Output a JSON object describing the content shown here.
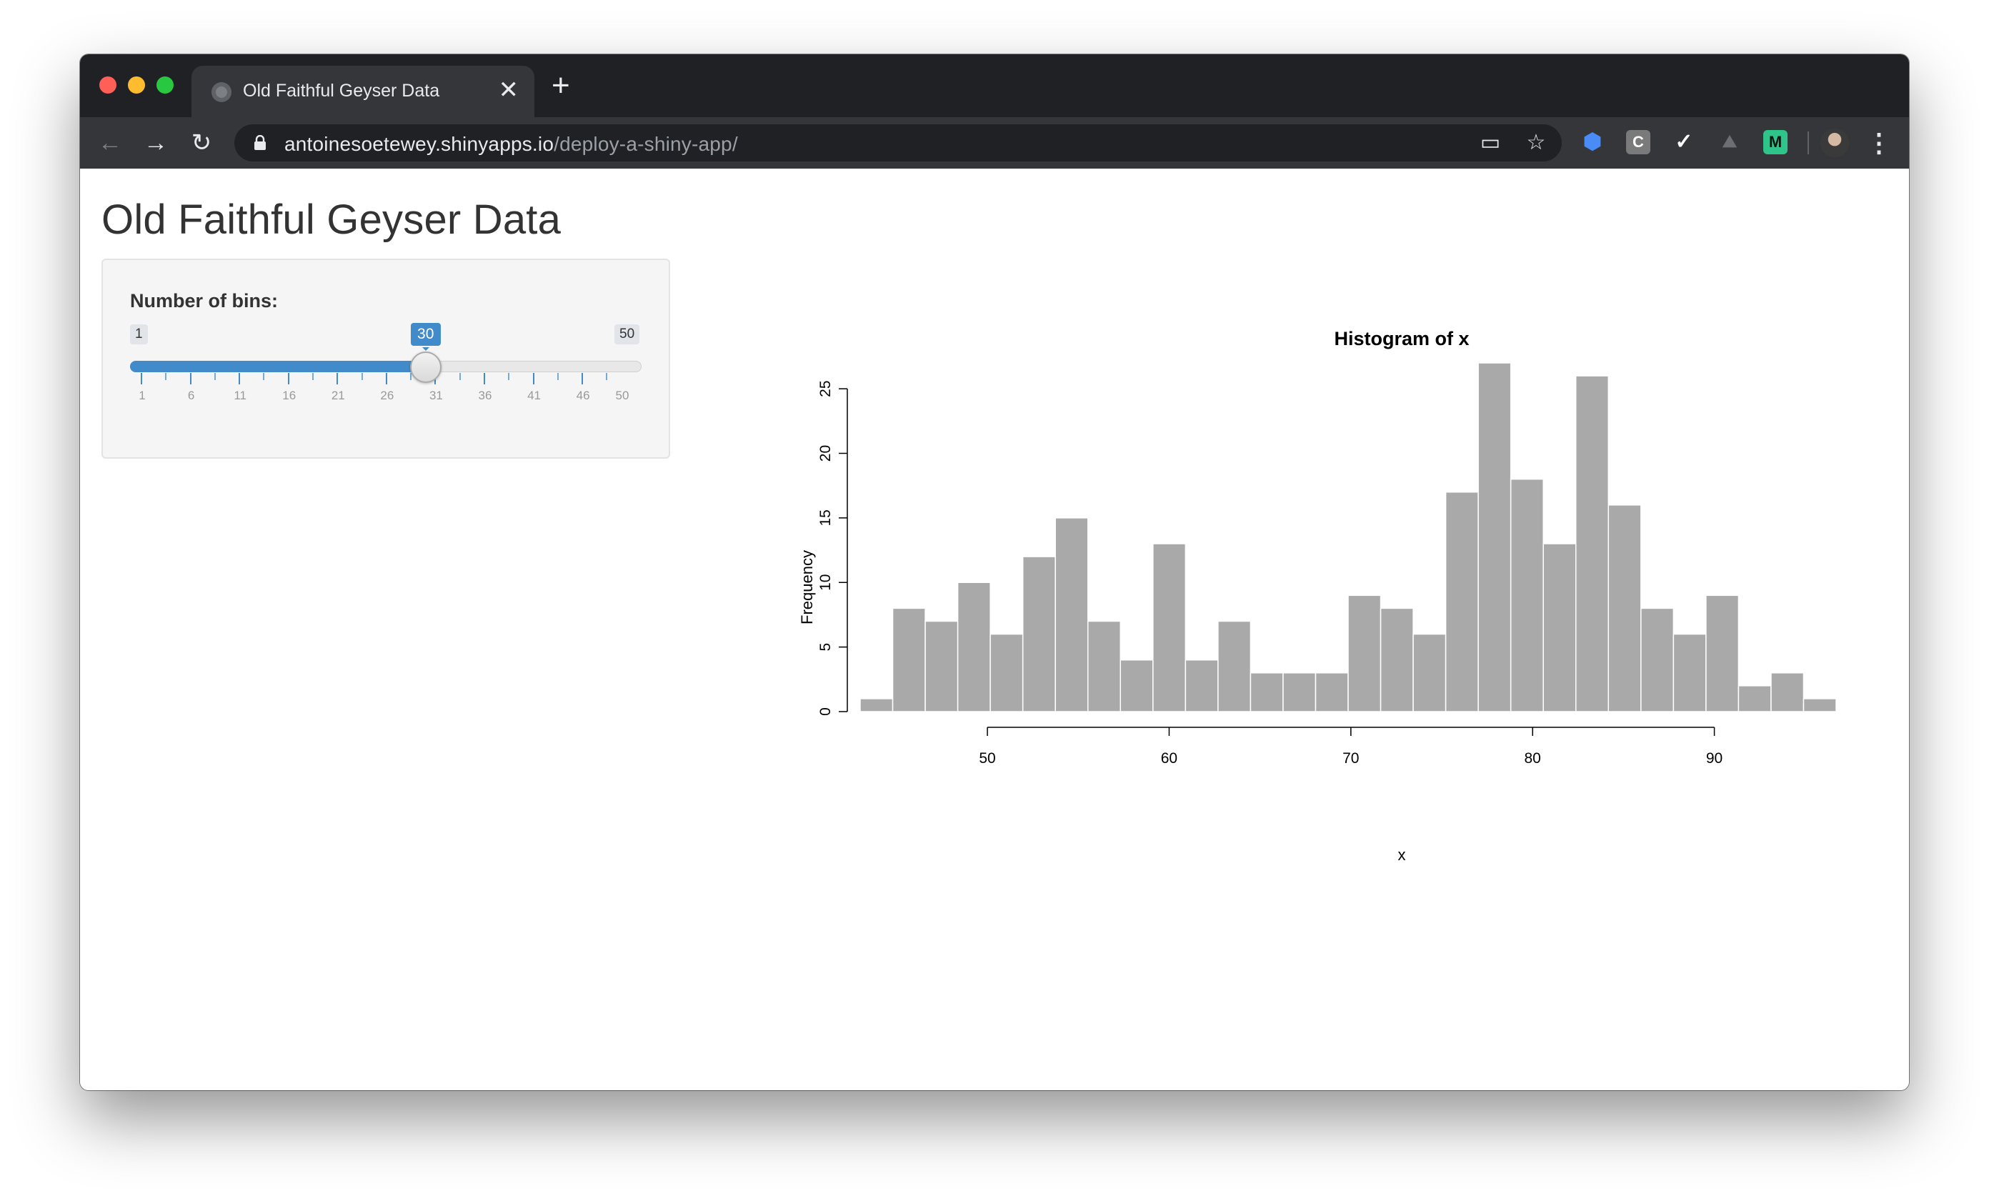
{
  "browser": {
    "tab_title": "Old Faithful Geyser Data",
    "tab_close": "✕",
    "new_tab": "+",
    "url_host": "antoinesoetewey.shinyapps.io",
    "url_path": "/deploy-a-shiny-app/",
    "extensions": [
      "shield-icon",
      "C",
      "checkmark-icon",
      "mountain-icon",
      "M"
    ]
  },
  "page": {
    "title": "Old Faithful Geyser Data"
  },
  "slider": {
    "label": "Number of bins:",
    "min": 1,
    "max": 50,
    "value": 30,
    "min_label": "1",
    "max_label": "50",
    "value_label": "30",
    "tick_labels": [
      "1",
      "6",
      "11",
      "16",
      "21",
      "26",
      "31",
      "36",
      "41",
      "46",
      "50"
    ],
    "accent_color": "#428bca"
  },
  "chart_data": {
    "type": "bar",
    "title": "Histogram of x",
    "xlabel": "x",
    "ylabel": "Frequency",
    "bin_start": 43,
    "bin_width": 1.79,
    "values": [
      1,
      8,
      7,
      10,
      6,
      12,
      15,
      7,
      4,
      13,
      4,
      7,
      3,
      3,
      3,
      9,
      8,
      6,
      17,
      27,
      18,
      13,
      26,
      16,
      8,
      6,
      9,
      2,
      3,
      1
    ],
    "x_ticks": [
      "50",
      "60",
      "70",
      "80",
      "90"
    ],
    "x_tick_values": [
      50,
      60,
      70,
      80,
      90
    ],
    "xlim": [
      43,
      96.7
    ],
    "y_ticks": [
      "0",
      "5",
      "10",
      "15",
      "20",
      "25"
    ],
    "y_tick_values": [
      0,
      5,
      10,
      15,
      20,
      25
    ],
    "ylim": [
      0,
      27
    ],
    "bar_color": "#a9a9a9",
    "grid": false
  }
}
